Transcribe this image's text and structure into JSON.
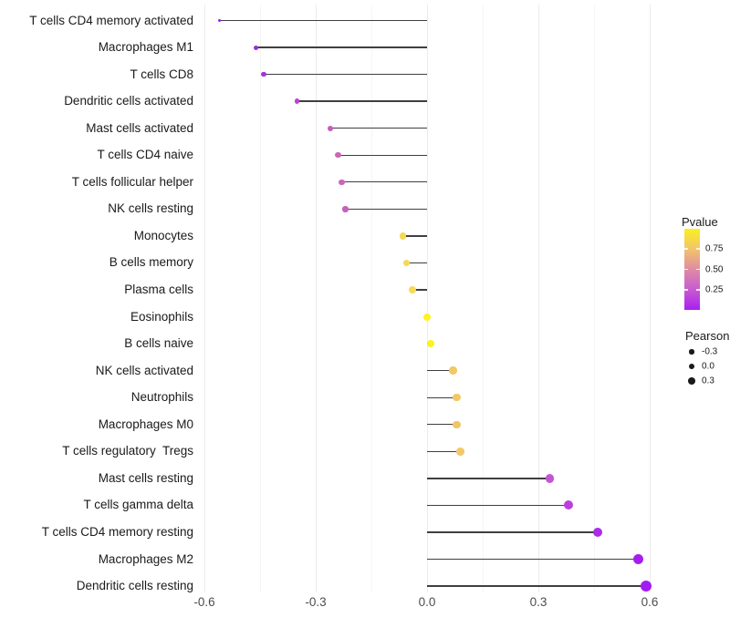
{
  "chart_data": {
    "type": "scatter",
    "style": "lollipop",
    "orientation": "horizontal",
    "title": "",
    "xlabel": "",
    "ylabel": "",
    "xlim": [
      -0.66,
      0.64
    ],
    "grid": "vertical-only",
    "x_ticks": [
      -0.6,
      -0.3,
      0.0,
      0.3,
      0.6
    ],
    "x_tick_labels": [
      "-0.6",
      "-0.3",
      "0.0",
      "0.3",
      "0.6"
    ],
    "x_minor_ticks": [
      -0.45,
      -0.15,
      0.15,
      0.45
    ],
    "segment_color": "#3f3f3f",
    "points": [
      {
        "label": "T cells CD4 memory activated",
        "pearson": -0.56,
        "color": "#9623dd",
        "size": 3.2
      },
      {
        "label": "Macrophages M1",
        "pearson": -0.46,
        "color": "#9d2ae4",
        "size": 5.0
      },
      {
        "label": "T cells CD8",
        "pearson": -0.44,
        "color": "#a032e2",
        "size": 5.2
      },
      {
        "label": "Dendritic cells activated",
        "pearson": -0.35,
        "color": "#b746d2",
        "size": 5.6
      },
      {
        "label": "Mast cells activated",
        "pearson": -0.26,
        "color": "#c55cc0",
        "size": 6.4
      },
      {
        "label": "T cells CD4 naive",
        "pearson": -0.24,
        "color": "#ca67b8",
        "size": 6.4
      },
      {
        "label": "T cells follicular helper",
        "pearson": -0.23,
        "color": "#c966ba",
        "size": 6.4
      },
      {
        "label": "NK cells resting",
        "pearson": -0.22,
        "color": "#c661bd",
        "size": 6.4
      },
      {
        "label": "Monocytes",
        "pearson": -0.065,
        "color": "#f6d855",
        "size": 7.6
      },
      {
        "label": "B cells memory",
        "pearson": -0.055,
        "color": "#f7d855",
        "size": 7.6
      },
      {
        "label": "Plasma cells",
        "pearson": -0.04,
        "color": "#f8da57",
        "size": 7.6
      },
      {
        "label": "Eosinophils",
        "pearson": 0.0,
        "color": "#fdf320",
        "size": 8.0
      },
      {
        "label": "B cells naive",
        "pearson": 0.01,
        "color": "#fdf318",
        "size": 8.6
      },
      {
        "label": "NK cells activated",
        "pearson": 0.07,
        "color": "#f2c765",
        "size": 8.4
      },
      {
        "label": "Neutrophils",
        "pearson": 0.08,
        "color": "#f2c765",
        "size": 8.4
      },
      {
        "label": "Macrophages M0",
        "pearson": 0.08,
        "color": "#f1c566",
        "size": 8.4
      },
      {
        "label": "T cells regulatory  Tregs",
        "pearson": 0.09,
        "color": "#f3c968",
        "size": 8.6
      },
      {
        "label": "Mast cells resting",
        "pearson": 0.33,
        "color": "#c454d6",
        "size": 9.4
      },
      {
        "label": "T cells gamma delta",
        "pearson": 0.38,
        "color": "#bb3fe0",
        "size": 10.0
      },
      {
        "label": "T cells CD4 memory resting",
        "pearson": 0.46,
        "color": "#ac2be8",
        "size": 10.6
      },
      {
        "label": "Macrophages M2",
        "pearson": 0.57,
        "color": "#a51ef0",
        "size": 11.2
      },
      {
        "label": "Dendritic cells resting",
        "pearson": 0.59,
        "color": "#a31bf2",
        "size": 12.0
      }
    ],
    "legend": {
      "position": "right",
      "pvalue": {
        "title": "Pvalue",
        "range": [
          0,
          1
        ],
        "tick_values": [
          0.75,
          0.5,
          0.25
        ],
        "tick_labels": [
          "0.75",
          "0.50",
          "0.25"
        ],
        "gradient_low_to_high": [
          "#a81ff0",
          "#c85bd0",
          "#de8ba4",
          "#f2c46a",
          "#faf021"
        ]
      },
      "pearson": {
        "title": "Pearson",
        "items": [
          {
            "label": "-0.3",
            "size": 5.2
          },
          {
            "label": "0.0",
            "size": 6.4
          },
          {
            "label": "0.3",
            "size": 7.8
          }
        ],
        "dot_color": "#1a1a1a"
      }
    }
  }
}
